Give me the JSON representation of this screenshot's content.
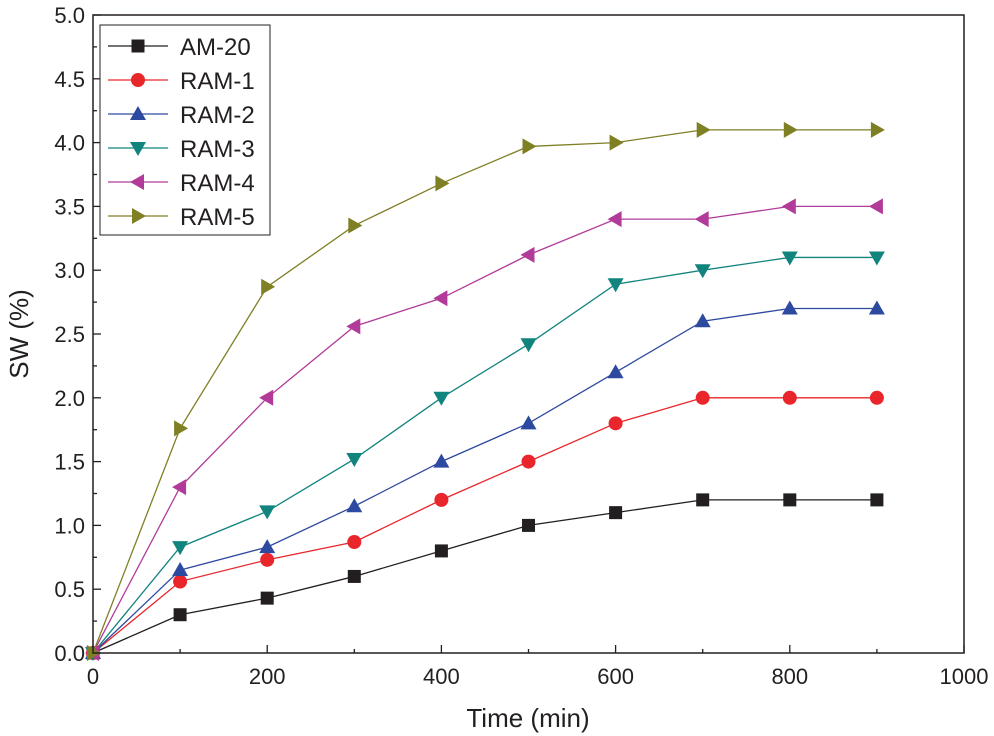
{
  "chart_data": {
    "type": "line",
    "title": "",
    "xlabel": "Time (min)",
    "ylabel": "SW (%)",
    "xlim": [
      0,
      1000
    ],
    "ylim": [
      0,
      5.0
    ],
    "x_ticks": [
      "0",
      "200",
      "400",
      "600",
      "800",
      "1000"
    ],
    "y_ticks": [
      "0.0",
      "0.5",
      "1.0",
      "1.5",
      "2.0",
      "2.5",
      "3.0",
      "3.5",
      "4.0",
      "4.5",
      "5.0"
    ],
    "legend_position": "top-left",
    "x": [
      0,
      100,
      200,
      300,
      400,
      500,
      600,
      700,
      800,
      900
    ],
    "series": [
      {
        "name": "AM-20",
        "color": "#231f20",
        "marker": "square",
        "values": [
          0,
          0.3,
          0.43,
          0.6,
          0.8,
          1.0,
          1.1,
          1.2,
          1.2,
          1.2
        ]
      },
      {
        "name": "RAM-1",
        "color": "#e8262b",
        "marker": "circle",
        "values": [
          0,
          0.56,
          0.73,
          0.87,
          1.2,
          1.5,
          1.8,
          2.0,
          2.0,
          2.0
        ]
      },
      {
        "name": "RAM-2",
        "color": "#2e4aa0",
        "marker": "triangle-up",
        "values": [
          0,
          0.65,
          0.83,
          1.15,
          1.5,
          1.8,
          2.2,
          2.6,
          2.7,
          2.7
        ]
      },
      {
        "name": "RAM-3",
        "color": "#11847e",
        "marker": "triangle-down",
        "values": [
          0,
          0.83,
          1.11,
          1.52,
          2.0,
          2.42,
          2.89,
          3.0,
          3.1,
          3.1
        ]
      },
      {
        "name": "RAM-4",
        "color": "#b23b9a",
        "marker": "triangle-left",
        "values": [
          0,
          1.3,
          2.0,
          2.56,
          2.78,
          3.12,
          3.4,
          3.4,
          3.5,
          3.5
        ]
      },
      {
        "name": "RAM-5",
        "color": "#7f7f24",
        "marker": "triangle-right",
        "values": [
          0,
          1.76,
          2.87,
          3.35,
          3.68,
          3.97,
          4.0,
          4.1,
          4.1,
          4.1
        ]
      }
    ]
  }
}
